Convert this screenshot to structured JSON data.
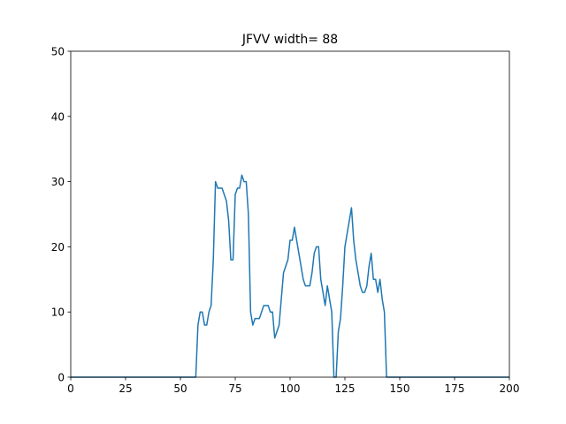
{
  "chart_data": {
    "type": "line",
    "title": "JFVV width= 88",
    "xlabel": "",
    "ylabel": "",
    "xlim": [
      0,
      200
    ],
    "ylim": [
      0,
      50
    ],
    "xticks": [
      0,
      25,
      50,
      75,
      100,
      125,
      150,
      175,
      200
    ],
    "yticks": [
      0,
      10,
      20,
      30,
      40,
      50
    ],
    "grid": false,
    "colors": {
      "line": "#1f77b4",
      "axes": "#000000",
      "background": "#ffffff"
    },
    "series": [
      {
        "x": [
          0,
          57,
          58,
          59,
          60,
          61,
          62,
          63,
          64,
          65,
          66,
          67,
          68,
          69,
          70,
          71,
          72,
          73,
          74,
          75,
          76,
          77,
          78,
          79,
          80,
          81,
          82,
          83,
          84,
          85,
          86,
          87,
          88,
          89,
          90,
          91,
          92,
          93,
          94,
          95,
          96,
          97,
          98,
          99,
          100,
          101,
          102,
          103,
          104,
          105,
          106,
          107,
          108,
          109,
          110,
          111,
          112,
          113,
          114,
          115,
          116,
          117,
          118,
          119,
          120,
          121,
          122,
          123,
          124,
          125,
          126,
          127,
          128,
          129,
          130,
          131,
          132,
          133,
          134,
          135,
          136,
          137,
          138,
          139,
          140,
          141,
          142,
          143,
          144,
          145,
          200
        ],
        "y": [
          0,
          0,
          8,
          10,
          10,
          8,
          8,
          10,
          11,
          18,
          30,
          29,
          29,
          29,
          28,
          27,
          24,
          18,
          18,
          28,
          29,
          29,
          31,
          30,
          30,
          25,
          10,
          8,
          9,
          9,
          9,
          10,
          11,
          11,
          11,
          10,
          10,
          6,
          7,
          8,
          12,
          16,
          17,
          18,
          21,
          21,
          23,
          21,
          19,
          17,
          15,
          14,
          14,
          14,
          16,
          19,
          20,
          20,
          15,
          13,
          11,
          14,
          12,
          10,
          0,
          0,
          7,
          9,
          14,
          20,
          22,
          24,
          26,
          21,
          18,
          16,
          14,
          13,
          13,
          14,
          17,
          19,
          15,
          15,
          13,
          15,
          12,
          10,
          0,
          0,
          0
        ]
      }
    ]
  }
}
